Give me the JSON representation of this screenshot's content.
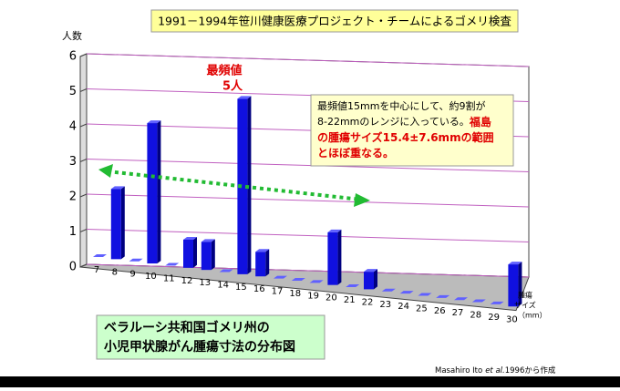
{
  "chart_data": {
    "type": "bar",
    "title": "1991－1994年笹川健康医療プロジェクト・チームによるゴメリ検査",
    "y_label": "人数",
    "x_label": [
      "腫瘍",
      "サイズ",
      "（mm）"
    ],
    "categories": [
      7,
      8,
      9,
      10,
      11,
      12,
      13,
      14,
      15,
      16,
      17,
      18,
      19,
      20,
      21,
      22,
      23,
      24,
      25,
      26,
      27,
      28,
      29,
      30
    ],
    "values": [
      0,
      2,
      0,
      4,
      0,
      0.8,
      0.8,
      0,
      5,
      0.7,
      0,
      0,
      0,
      1.5,
      0,
      0.5,
      0,
      0,
      0,
      0,
      0,
      0,
      0,
      1.2
    ],
    "color": "#1010e0",
    "ylim": [
      0,
      6
    ],
    "yticks": [
      0,
      1,
      2,
      3,
      4,
      5,
      6
    ],
    "grid": true,
    "mode_label": [
      "最頻値",
      "5人"
    ],
    "note": [
      {
        "text": "最頻値15mmを中心にして、約9割が"
      },
      {
        "text": "8-22mmのレンジに入っている。",
        "highlight": "福島"
      },
      {
        "highlight": "の腫瘍サイズ15.4±7.6mmの範囲"
      },
      {
        "highlight": "とほぼ重なる。"
      }
    ],
    "caption": [
      "ベラルーシ共和国ゴメリ州の",
      "小児甲状腺がん腫瘍寸法の分布図"
    ],
    "source": {
      "author": "Masahiro Ito",
      "etal": "et al.",
      "rest": "1996から作成"
    }
  }
}
